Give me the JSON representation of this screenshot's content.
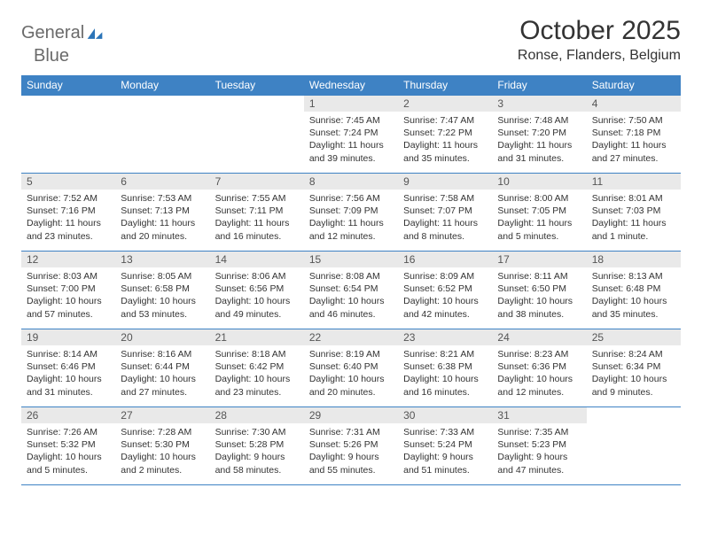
{
  "brand": {
    "word1": "General",
    "word2": "Blue"
  },
  "title": "October 2025",
  "location": "Ronse, Flanders, Belgium",
  "colors": {
    "header_bg": "#3e82c4",
    "header_fg": "#ffffff",
    "rule": "#3e82c4",
    "daynum_bg": "#e9e9e9",
    "text": "#333333",
    "logo_gray": "#6a6a6a",
    "logo_blue": "#2b74b8"
  },
  "day_headers": [
    "Sunday",
    "Monday",
    "Tuesday",
    "Wednesday",
    "Thursday",
    "Friday",
    "Saturday"
  ],
  "weeks": [
    [
      {
        "n": "",
        "sr": "",
        "ss": "",
        "dl": ""
      },
      {
        "n": "",
        "sr": "",
        "ss": "",
        "dl": ""
      },
      {
        "n": "",
        "sr": "",
        "ss": "",
        "dl": ""
      },
      {
        "n": "1",
        "sr": "Sunrise: 7:45 AM",
        "ss": "Sunset: 7:24 PM",
        "dl": "Daylight: 11 hours and 39 minutes."
      },
      {
        "n": "2",
        "sr": "Sunrise: 7:47 AM",
        "ss": "Sunset: 7:22 PM",
        "dl": "Daylight: 11 hours and 35 minutes."
      },
      {
        "n": "3",
        "sr": "Sunrise: 7:48 AM",
        "ss": "Sunset: 7:20 PM",
        "dl": "Daylight: 11 hours and 31 minutes."
      },
      {
        "n": "4",
        "sr": "Sunrise: 7:50 AM",
        "ss": "Sunset: 7:18 PM",
        "dl": "Daylight: 11 hours and 27 minutes."
      }
    ],
    [
      {
        "n": "5",
        "sr": "Sunrise: 7:52 AM",
        "ss": "Sunset: 7:16 PM",
        "dl": "Daylight: 11 hours and 23 minutes."
      },
      {
        "n": "6",
        "sr": "Sunrise: 7:53 AM",
        "ss": "Sunset: 7:13 PM",
        "dl": "Daylight: 11 hours and 20 minutes."
      },
      {
        "n": "7",
        "sr": "Sunrise: 7:55 AM",
        "ss": "Sunset: 7:11 PM",
        "dl": "Daylight: 11 hours and 16 minutes."
      },
      {
        "n": "8",
        "sr": "Sunrise: 7:56 AM",
        "ss": "Sunset: 7:09 PM",
        "dl": "Daylight: 11 hours and 12 minutes."
      },
      {
        "n": "9",
        "sr": "Sunrise: 7:58 AM",
        "ss": "Sunset: 7:07 PM",
        "dl": "Daylight: 11 hours and 8 minutes."
      },
      {
        "n": "10",
        "sr": "Sunrise: 8:00 AM",
        "ss": "Sunset: 7:05 PM",
        "dl": "Daylight: 11 hours and 5 minutes."
      },
      {
        "n": "11",
        "sr": "Sunrise: 8:01 AM",
        "ss": "Sunset: 7:03 PM",
        "dl": "Daylight: 11 hours and 1 minute."
      }
    ],
    [
      {
        "n": "12",
        "sr": "Sunrise: 8:03 AM",
        "ss": "Sunset: 7:00 PM",
        "dl": "Daylight: 10 hours and 57 minutes."
      },
      {
        "n": "13",
        "sr": "Sunrise: 8:05 AM",
        "ss": "Sunset: 6:58 PM",
        "dl": "Daylight: 10 hours and 53 minutes."
      },
      {
        "n": "14",
        "sr": "Sunrise: 8:06 AM",
        "ss": "Sunset: 6:56 PM",
        "dl": "Daylight: 10 hours and 49 minutes."
      },
      {
        "n": "15",
        "sr": "Sunrise: 8:08 AM",
        "ss": "Sunset: 6:54 PM",
        "dl": "Daylight: 10 hours and 46 minutes."
      },
      {
        "n": "16",
        "sr": "Sunrise: 8:09 AM",
        "ss": "Sunset: 6:52 PM",
        "dl": "Daylight: 10 hours and 42 minutes."
      },
      {
        "n": "17",
        "sr": "Sunrise: 8:11 AM",
        "ss": "Sunset: 6:50 PM",
        "dl": "Daylight: 10 hours and 38 minutes."
      },
      {
        "n": "18",
        "sr": "Sunrise: 8:13 AM",
        "ss": "Sunset: 6:48 PM",
        "dl": "Daylight: 10 hours and 35 minutes."
      }
    ],
    [
      {
        "n": "19",
        "sr": "Sunrise: 8:14 AM",
        "ss": "Sunset: 6:46 PM",
        "dl": "Daylight: 10 hours and 31 minutes."
      },
      {
        "n": "20",
        "sr": "Sunrise: 8:16 AM",
        "ss": "Sunset: 6:44 PM",
        "dl": "Daylight: 10 hours and 27 minutes."
      },
      {
        "n": "21",
        "sr": "Sunrise: 8:18 AM",
        "ss": "Sunset: 6:42 PM",
        "dl": "Daylight: 10 hours and 23 minutes."
      },
      {
        "n": "22",
        "sr": "Sunrise: 8:19 AM",
        "ss": "Sunset: 6:40 PM",
        "dl": "Daylight: 10 hours and 20 minutes."
      },
      {
        "n": "23",
        "sr": "Sunrise: 8:21 AM",
        "ss": "Sunset: 6:38 PM",
        "dl": "Daylight: 10 hours and 16 minutes."
      },
      {
        "n": "24",
        "sr": "Sunrise: 8:23 AM",
        "ss": "Sunset: 6:36 PM",
        "dl": "Daylight: 10 hours and 12 minutes."
      },
      {
        "n": "25",
        "sr": "Sunrise: 8:24 AM",
        "ss": "Sunset: 6:34 PM",
        "dl": "Daylight: 10 hours and 9 minutes."
      }
    ],
    [
      {
        "n": "26",
        "sr": "Sunrise: 7:26 AM",
        "ss": "Sunset: 5:32 PM",
        "dl": "Daylight: 10 hours and 5 minutes."
      },
      {
        "n": "27",
        "sr": "Sunrise: 7:28 AM",
        "ss": "Sunset: 5:30 PM",
        "dl": "Daylight: 10 hours and 2 minutes."
      },
      {
        "n": "28",
        "sr": "Sunrise: 7:30 AM",
        "ss": "Sunset: 5:28 PM",
        "dl": "Daylight: 9 hours and 58 minutes."
      },
      {
        "n": "29",
        "sr": "Sunrise: 7:31 AM",
        "ss": "Sunset: 5:26 PM",
        "dl": "Daylight: 9 hours and 55 minutes."
      },
      {
        "n": "30",
        "sr": "Sunrise: 7:33 AM",
        "ss": "Sunset: 5:24 PM",
        "dl": "Daylight: 9 hours and 51 minutes."
      },
      {
        "n": "31",
        "sr": "Sunrise: 7:35 AM",
        "ss": "Sunset: 5:23 PM",
        "dl": "Daylight: 9 hours and 47 minutes."
      },
      {
        "n": "",
        "sr": "",
        "ss": "",
        "dl": ""
      }
    ]
  ]
}
